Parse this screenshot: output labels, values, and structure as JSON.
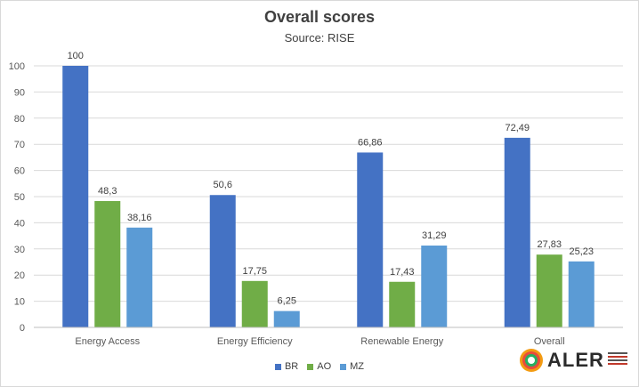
{
  "chart_data": {
    "type": "bar",
    "title": "Overall scores",
    "subtitle": "Source: RISE",
    "categories": [
      "Energy Access",
      "Energy Efficiency",
      "Renewable Energy",
      "Overall"
    ],
    "series": [
      {
        "name": "BR",
        "values": [
          100,
          50.6,
          66.86,
          72.49
        ],
        "labels": [
          "100",
          "50,6",
          "66,86",
          "72,49"
        ],
        "color": "#4472c4"
      },
      {
        "name": "AO",
        "values": [
          48.3,
          17.75,
          17.43,
          27.83
        ],
        "labels": [
          "48,3",
          "17,75",
          "17,43",
          "27,83"
        ],
        "color": "#70ad47"
      },
      {
        "name": "MZ",
        "values": [
          38.16,
          6.25,
          31.29,
          25.23
        ],
        "labels": [
          "38,16",
          "6,25",
          "31,29",
          "25,23"
        ],
        "color": "#5b9bd5"
      }
    ],
    "ylim": [
      0,
      100
    ],
    "yticks": [
      "0",
      "10",
      "20",
      "30",
      "40",
      "50",
      "60",
      "70",
      "80",
      "90",
      "100"
    ],
    "grid": true,
    "legend_position": "bottom"
  },
  "logo": {
    "text": "ALER",
    "icon": "aler-logo-icon"
  }
}
